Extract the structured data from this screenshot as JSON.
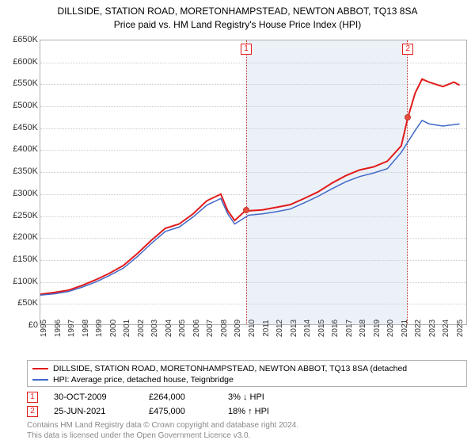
{
  "title_line1": "DILLSIDE, STATION ROAD, MORETONHAMPSTEAD, NEWTON ABBOT, TQ13 8SA",
  "title_line2": "Price paid vs. HM Land Registry's House Price Index (HPI)",
  "chart": {
    "type": "line",
    "background_color": "#ffffff",
    "grid_color": "#cccccc",
    "border_color": "#b0b0b0",
    "ylim": [
      0,
      650000
    ],
    "xlim": [
      1995,
      2025.8
    ],
    "yticks": [
      0,
      50000,
      100000,
      150000,
      200000,
      250000,
      300000,
      350000,
      400000,
      450000,
      500000,
      550000,
      600000,
      650000
    ],
    "ytick_labels": [
      "£0",
      "£50K",
      "£100K",
      "£150K",
      "£200K",
      "£250K",
      "£300K",
      "£350K",
      "£400K",
      "£450K",
      "£500K",
      "£550K",
      "£600K",
      "£650K"
    ],
    "xticks": [
      1995,
      1996,
      1997,
      1998,
      1999,
      2000,
      2001,
      2002,
      2003,
      2004,
      2005,
      2006,
      2007,
      2008,
      2009,
      2010,
      2011,
      2012,
      2013,
      2014,
      2015,
      2016,
      2017,
      2018,
      2019,
      2020,
      2021,
      2022,
      2023,
      2024,
      2025
    ],
    "shaded_region": {
      "x_start": 2009.83,
      "x_end": 2021.48,
      "color": "rgba(200,215,235,0.35)"
    },
    "series": [
      {
        "name": "property",
        "color": "#e21b1b",
        "width": 2,
        "data": [
          [
            1995,
            72000
          ],
          [
            1996,
            76000
          ],
          [
            1997,
            81000
          ],
          [
            1998,
            92000
          ],
          [
            1999,
            105000
          ],
          [
            2000,
            120000
          ],
          [
            2001,
            138000
          ],
          [
            2002,
            165000
          ],
          [
            2003,
            195000
          ],
          [
            2004,
            222000
          ],
          [
            2005,
            232000
          ],
          [
            2006,
            255000
          ],
          [
            2007,
            285000
          ],
          [
            2008,
            300000
          ],
          [
            2008.5,
            262000
          ],
          [
            2009,
            240000
          ],
          [
            2009.83,
            264000
          ],
          [
            2010,
            262000
          ],
          [
            2011,
            264000
          ],
          [
            2012,
            270000
          ],
          [
            2013,
            276000
          ],
          [
            2014,
            290000
          ],
          [
            2015,
            305000
          ],
          [
            2016,
            325000
          ],
          [
            2017,
            342000
          ],
          [
            2018,
            355000
          ],
          [
            2019,
            362000
          ],
          [
            2020,
            375000
          ],
          [
            2021,
            410000
          ],
          [
            2021.48,
            475000
          ],
          [
            2022,
            530000
          ],
          [
            2022.5,
            562000
          ],
          [
            2023,
            555000
          ],
          [
            2024,
            545000
          ],
          [
            2024.8,
            555000
          ],
          [
            2025.2,
            548000
          ]
        ]
      },
      {
        "name": "hpi",
        "color": "#4169c8",
        "width": 1.5,
        "data": [
          [
            1995,
            70000
          ],
          [
            1996,
            73000
          ],
          [
            1997,
            78000
          ],
          [
            1998,
            88000
          ],
          [
            1999,
            100000
          ],
          [
            2000,
            115000
          ],
          [
            2001,
            132000
          ],
          [
            2002,
            158000
          ],
          [
            2003,
            188000
          ],
          [
            2004,
            215000
          ],
          [
            2005,
            225000
          ],
          [
            2006,
            248000
          ],
          [
            2007,
            275000
          ],
          [
            2008,
            290000
          ],
          [
            2008.5,
            255000
          ],
          [
            2009,
            232000
          ],
          [
            2010,
            252000
          ],
          [
            2011,
            255000
          ],
          [
            2012,
            260000
          ],
          [
            2013,
            266000
          ],
          [
            2014,
            280000
          ],
          [
            2015,
            295000
          ],
          [
            2016,
            312000
          ],
          [
            2017,
            328000
          ],
          [
            2018,
            340000
          ],
          [
            2019,
            348000
          ],
          [
            2020,
            358000
          ],
          [
            2021,
            395000
          ],
          [
            2022,
            445000
          ],
          [
            2022.5,
            468000
          ],
          [
            2023,
            460000
          ],
          [
            2024,
            455000
          ],
          [
            2025.2,
            460000
          ]
        ]
      }
    ],
    "markers": [
      {
        "n": "1",
        "x": 2009.83,
        "y": 264000,
        "box_color": "#e21b1b"
      },
      {
        "n": "2",
        "x": 2021.48,
        "y": 475000,
        "box_color": "#e21b1b"
      }
    ]
  },
  "legend": {
    "items": [
      {
        "color": "#e21b1b",
        "label": "DILLSIDE, STATION ROAD, MORETONHAMPSTEAD, NEWTON ABBOT, TQ13 8SA (detached"
      },
      {
        "color": "#4169c8",
        "label": "HPI: Average price, detached house, Teignbridge"
      }
    ]
  },
  "transactions": [
    {
      "n": "1",
      "box_color": "#e21b1b",
      "date": "30-OCT-2009",
      "price": "£264,000",
      "delta": "3% ↓ HPI"
    },
    {
      "n": "2",
      "box_color": "#e21b1b",
      "date": "25-JUN-2021",
      "price": "£475,000",
      "delta": "18% ↑ HPI"
    }
  ],
  "footer_line1": "Contains HM Land Registry data © Crown copyright and database right 2024.",
  "footer_line2": "This data is licensed under the Open Government Licence v3.0."
}
